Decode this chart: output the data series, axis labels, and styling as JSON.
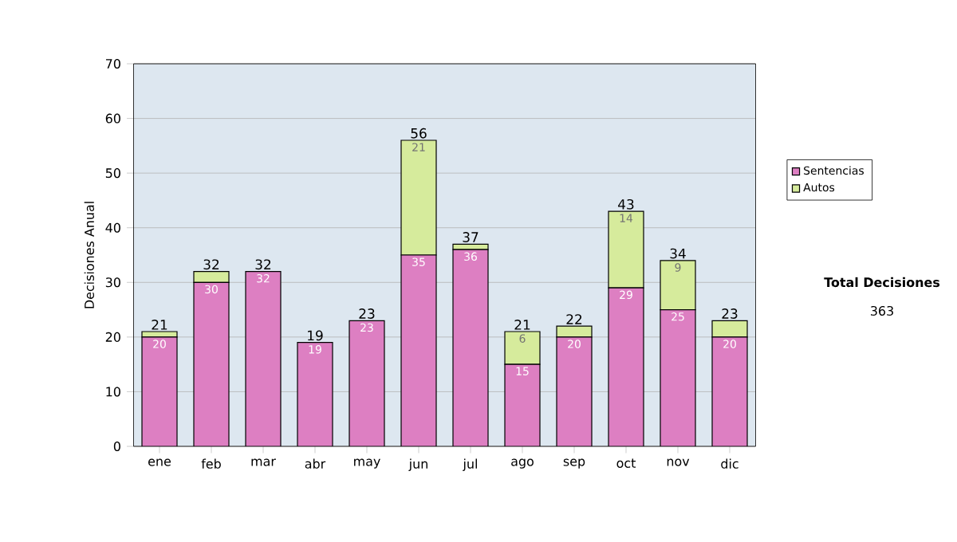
{
  "chart_data": {
    "type": "bar",
    "stacked": true,
    "ylabel": "Decisiones Anual",
    "categories": [
      "ene",
      "feb",
      "mar",
      "abr",
      "may",
      "jun",
      "jul",
      "ago",
      "sep",
      "oct",
      "nov",
      "dic"
    ],
    "series": [
      {
        "name": "Sentencias",
        "color": "#dd7fc2",
        "values": [
          20,
          30,
          32,
          19,
          23,
          35,
          36,
          15,
          20,
          29,
          25,
          20
        ],
        "value_labels": [
          "20",
          "30",
          "32",
          "19",
          "23",
          "35",
          "36",
          "15",
          "20",
          "29",
          "25",
          "20"
        ]
      },
      {
        "name": "Autos",
        "color": "#d6eb9c",
        "values": [
          1,
          2,
          0,
          0,
          0,
          21,
          1,
          6,
          2,
          14,
          9,
          3
        ],
        "value_labels": [
          null,
          null,
          null,
          null,
          null,
          "21",
          null,
          "6",
          null,
          "14",
          "9",
          null
        ]
      }
    ],
    "totals": [
      "21",
      "32",
      "32",
      "19",
      "23",
      "56",
      "37",
      "21",
      "22",
      "43",
      "34",
      "23"
    ],
    "ylim": [
      0,
      70
    ],
    "yticks": [
      0,
      10,
      20,
      30,
      40,
      50,
      60,
      70
    ],
    "grid": "y",
    "legend": "right",
    "annotations": [
      "Total Decisiones",
      "363"
    ]
  }
}
